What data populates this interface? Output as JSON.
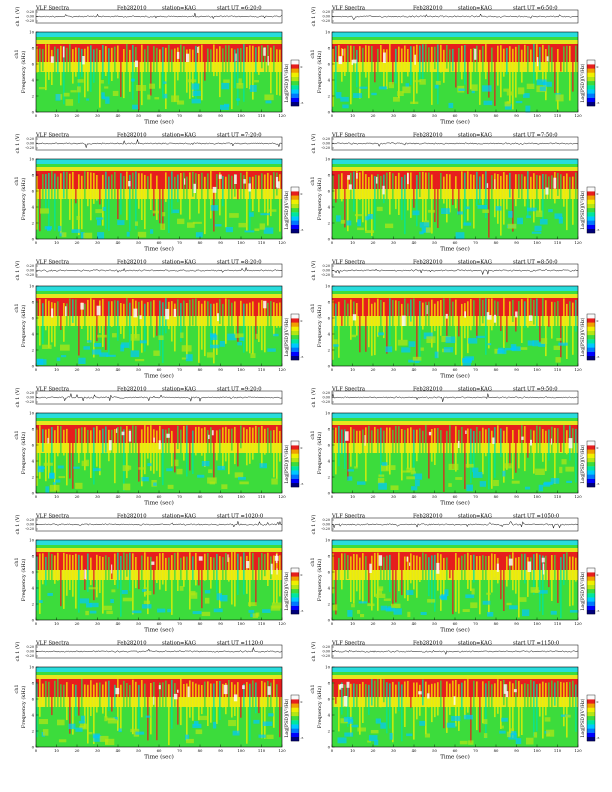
{
  "colors": {
    "spectrogram_scale": [
      "#00007a",
      "#0000ff",
      "#0078ff",
      "#00c8ff",
      "#00e6a0",
      "#3cdc3c",
      "#b4e614",
      "#f0f000",
      "#f0a000",
      "#e61e1e",
      "#fafafa"
    ],
    "band_cyan": "#28dcdc",
    "band_yellow": "#e6e61e",
    "band_red": "#e61e1e",
    "background": "#ffffff"
  },
  "chart_data": [
    {
      "type": "heatmap",
      "title": "VLF Spectra",
      "date": "Feb282010",
      "station": "station=KAG",
      "start": "start  UT =6:20:0",
      "ch_label": "ch 1 (V)",
      "ch_ticks": [
        "0.20",
        "0.00",
        "-0.20"
      ],
      "ylabel": "Frequency  (kHz)",
      "ylabel_ch": "ch1",
      "yticks": [
        "0",
        "2",
        "4",
        "6",
        "8",
        "10"
      ],
      "xlabel": "Time  (sec)",
      "xticks": [
        "0",
        "10",
        "20",
        "30",
        "40",
        "50",
        "60",
        "70",
        "80",
        "90",
        "100",
        "110",
        "120"
      ],
      "xlim": [
        0,
        120
      ],
      "ylim": [
        0,
        10
      ],
      "colorbar_label": "Log[PSD](V²/Hz)",
      "colorbar_ticks": [
        "0",
        "-5"
      ]
    },
    {
      "type": "heatmap",
      "title": "VLF Spectra",
      "date": "Feb282010",
      "station": "station=KAG",
      "start": "start  UT =6:50:0",
      "ch_label": "ch 1 (V)",
      "ch_ticks": [
        "0.20",
        "0.00",
        "-0.20"
      ],
      "ylabel": "Frequency  (kHz)",
      "ylabel_ch": "ch1",
      "yticks": [
        "0",
        "2",
        "4",
        "6",
        "8",
        "10"
      ],
      "xlabel": "Time  (sec)",
      "xticks": [
        "0",
        "10",
        "20",
        "30",
        "40",
        "50",
        "60",
        "70",
        "80",
        "90",
        "100",
        "110",
        "120"
      ],
      "xlim": [
        0,
        120
      ],
      "ylim": [
        0,
        10
      ],
      "colorbar_label": "Log[PSD](V²/Hz)",
      "colorbar_ticks": [
        "0",
        "-5"
      ]
    },
    {
      "type": "heatmap",
      "title": "VLF Spectra",
      "date": "Feb282010",
      "station": "station=KAG",
      "start": "start  UT =7:20:0",
      "ch_label": "ch 1 (V)",
      "ch_ticks": [
        "0.20",
        "0.00",
        "-0.20"
      ],
      "ylabel": "Frequency  (kHz)",
      "ylabel_ch": "ch1",
      "yticks": [
        "0",
        "2",
        "4",
        "6",
        "8",
        "10"
      ],
      "xlabel": "Time  (sec)",
      "xticks": [
        "0",
        "10",
        "20",
        "30",
        "40",
        "50",
        "60",
        "70",
        "80",
        "90",
        "100",
        "110",
        "120"
      ],
      "xlim": [
        0,
        120
      ],
      "ylim": [
        0,
        10
      ],
      "colorbar_label": "Log[PSD](V²/Hz)",
      "colorbar_ticks": [
        "0",
        "-5"
      ]
    },
    {
      "type": "heatmap",
      "title": "VLF Spectra",
      "date": "Feb282010",
      "station": "station=KAG",
      "start": "start  UT =7:50:0",
      "ch_label": "ch 1 (V)",
      "ch_ticks": [
        "0.20",
        "0.00",
        "-0.20"
      ],
      "ylabel": "Frequency  (kHz)",
      "ylabel_ch": "ch1",
      "yticks": [
        "0",
        "2",
        "4",
        "6",
        "8",
        "10"
      ],
      "xlabel": "Time  (sec)",
      "xticks": [
        "0",
        "10",
        "20",
        "30",
        "40",
        "50",
        "60",
        "70",
        "80",
        "90",
        "100",
        "110",
        "120"
      ],
      "xlim": [
        0,
        120
      ],
      "ylim": [
        0,
        10
      ],
      "colorbar_label": "Log[PSD](V²/Hz)",
      "colorbar_ticks": [
        "0",
        "-5"
      ]
    },
    {
      "type": "heatmap",
      "title": "VLF Spectra",
      "date": "Feb282010",
      "station": "station=KAG",
      "start": "start  UT =8:20:0",
      "ch_label": "ch 1 (V)",
      "ch_ticks": [
        "0.20",
        "0.00",
        "-0.20"
      ],
      "ylabel": "Frequency  (kHz)",
      "ylabel_ch": "ch1",
      "yticks": [
        "0",
        "2",
        "4",
        "6",
        "8",
        "10"
      ],
      "xlabel": "Time  (sec)",
      "xticks": [
        "0",
        "10",
        "20",
        "30",
        "40",
        "50",
        "60",
        "70",
        "80",
        "90",
        "100",
        "110",
        "120"
      ],
      "xlim": [
        0,
        120
      ],
      "ylim": [
        0,
        10
      ],
      "colorbar_label": "Log[PSD](V²/Hz)",
      "colorbar_ticks": [
        "0",
        "-5"
      ]
    },
    {
      "type": "heatmap",
      "title": "VLF Spectra",
      "date": "Feb282010",
      "station": "station=KAG",
      "start": "start  UT =8:50:0",
      "ch_label": "ch 1 (V)",
      "ch_ticks": [
        "0.20",
        "0.00",
        "-0.20"
      ],
      "ylabel": "Frequency  (kHz)",
      "ylabel_ch": "ch1",
      "yticks": [
        "0",
        "2",
        "4",
        "6",
        "8",
        "10"
      ],
      "xlabel": "Time  (sec)",
      "xticks": [
        "0",
        "10",
        "20",
        "30",
        "40",
        "50",
        "60",
        "70",
        "80",
        "90",
        "100",
        "110",
        "120"
      ],
      "xlim": [
        0,
        120
      ],
      "ylim": [
        0,
        10
      ],
      "colorbar_label": "Log[PSD](V²/Hz)",
      "colorbar_ticks": [
        "0",
        "-5"
      ]
    },
    {
      "type": "heatmap",
      "title": "VLF Spectra",
      "date": "Feb282010",
      "station": "station=KAG",
      "start": "start  UT =9:20:0",
      "ch_label": "ch 1 (V)",
      "ch_ticks": [
        "0.20",
        "0.00",
        "-0.20"
      ],
      "ylabel": "Frequency  (kHz)",
      "ylabel_ch": "ch1",
      "yticks": [
        "0",
        "2",
        "4",
        "6",
        "8",
        "10"
      ],
      "xlabel": "Time  (sec)",
      "xticks": [
        "0",
        "10",
        "20",
        "30",
        "40",
        "50",
        "60",
        "70",
        "80",
        "90",
        "100",
        "110",
        "120"
      ],
      "xlim": [
        0,
        120
      ],
      "ylim": [
        0,
        10
      ],
      "colorbar_label": "Log[PSD](V²/Hz)",
      "colorbar_ticks": [
        "0",
        "-5"
      ]
    },
    {
      "type": "heatmap",
      "title": "VLF Spectra",
      "date": "Feb282010",
      "station": "station=KAG",
      "start": "start  UT =9:50:0",
      "ch_label": "ch 1 (V)",
      "ch_ticks": [
        "0.20",
        "0.00",
        "-0.20"
      ],
      "ylabel": "Frequency  (kHz)",
      "ylabel_ch": "ch1",
      "yticks": [
        "0",
        "2",
        "4",
        "6",
        "8",
        "10"
      ],
      "xlabel": "Time  (sec)",
      "xticks": [
        "0",
        "10",
        "20",
        "30",
        "40",
        "50",
        "60",
        "70",
        "80",
        "90",
        "100",
        "110",
        "120"
      ],
      "xlim": [
        0,
        120
      ],
      "ylim": [
        0,
        10
      ],
      "colorbar_label": "Log[PSD](V²/Hz)",
      "colorbar_ticks": [
        "0",
        "-5"
      ]
    },
    {
      "type": "heatmap",
      "title": "VLF Spectra",
      "date": "Feb282010",
      "station": "station=KAG",
      "start": "start  UT =1020:0",
      "ch_label": "ch 1 (V)",
      "ch_ticks": [
        "0.20",
        "0.00",
        "-0.20"
      ],
      "ylabel": "Frequency  (kHz)",
      "ylabel_ch": "ch1",
      "yticks": [
        "0",
        "2",
        "4",
        "6",
        "8",
        "10"
      ],
      "xlabel": "Time  (sec)",
      "xticks": [
        "0",
        "10",
        "20",
        "30",
        "40",
        "50",
        "60",
        "70",
        "80",
        "90",
        "100",
        "110",
        "120"
      ],
      "xlim": [
        0,
        120
      ],
      "ylim": [
        0,
        10
      ],
      "colorbar_label": "Log[PSD](V²/Hz)",
      "colorbar_ticks": [
        "0",
        "-5"
      ]
    },
    {
      "type": "heatmap",
      "title": "VLF Spectra",
      "date": "Feb282010",
      "station": "station=KAG",
      "start": "start  UT =1050:0",
      "ch_label": "ch 1 (V)",
      "ch_ticks": [
        "0.20",
        "0.00",
        "-0.20"
      ],
      "ylabel": "Frequency  (kHz)",
      "ylabel_ch": "ch1",
      "yticks": [
        "0",
        "2",
        "4",
        "6",
        "8",
        "10"
      ],
      "xlabel": "Time  (sec)",
      "xticks": [
        "0",
        "10",
        "20",
        "30",
        "40",
        "50",
        "60",
        "70",
        "80",
        "90",
        "100",
        "110",
        "120"
      ],
      "xlim": [
        0,
        120
      ],
      "ylim": [
        0,
        10
      ],
      "colorbar_label": "Log[PSD](V²/Hz)",
      "colorbar_ticks": [
        "0",
        "-5"
      ]
    },
    {
      "type": "heatmap",
      "title": "VLF Spectra",
      "date": "Feb282010",
      "station": "station=KAG",
      "start": "start  UT =1120:0",
      "ch_label": "ch 1 (V)",
      "ch_ticks": [
        "0.20",
        "0.00",
        "-0.20"
      ],
      "ylabel": "Frequency  (kHz)",
      "ylabel_ch": "ch1",
      "yticks": [
        "0",
        "2",
        "4",
        "6",
        "8",
        "10"
      ],
      "xlabel": "Time  (sec)",
      "xticks": [
        "0",
        "10",
        "20",
        "30",
        "40",
        "50",
        "60",
        "70",
        "80",
        "90",
        "100",
        "110",
        "120"
      ],
      "xlim": [
        0,
        120
      ],
      "ylim": [
        0,
        10
      ],
      "colorbar_label": "Log[PSD](V²/Hz)",
      "colorbar_ticks": [
        "0",
        "-5"
      ]
    },
    {
      "type": "heatmap",
      "title": "VLF Spectra",
      "date": "Feb282010",
      "station": "station=KAG",
      "start": "start  UT =1150:0",
      "ch_label": "ch 1 (V)",
      "ch_ticks": [
        "0.20",
        "0.00",
        "-0.20"
      ],
      "ylabel": "Frequency  (kHz)",
      "ylabel_ch": "ch1",
      "yticks": [
        "0",
        "2",
        "4",
        "6",
        "8",
        "10"
      ],
      "xlabel": "Time  (sec)",
      "xticks": [
        "0",
        "10",
        "20",
        "30",
        "40",
        "50",
        "60",
        "70",
        "80",
        "90",
        "100",
        "110",
        "120"
      ],
      "xlim": [
        0,
        120
      ],
      "ylim": [
        0,
        10
      ],
      "colorbar_label": "Log[PSD](V²/Hz)",
      "colorbar_ticks": [
        "0",
        "-5"
      ]
    }
  ]
}
